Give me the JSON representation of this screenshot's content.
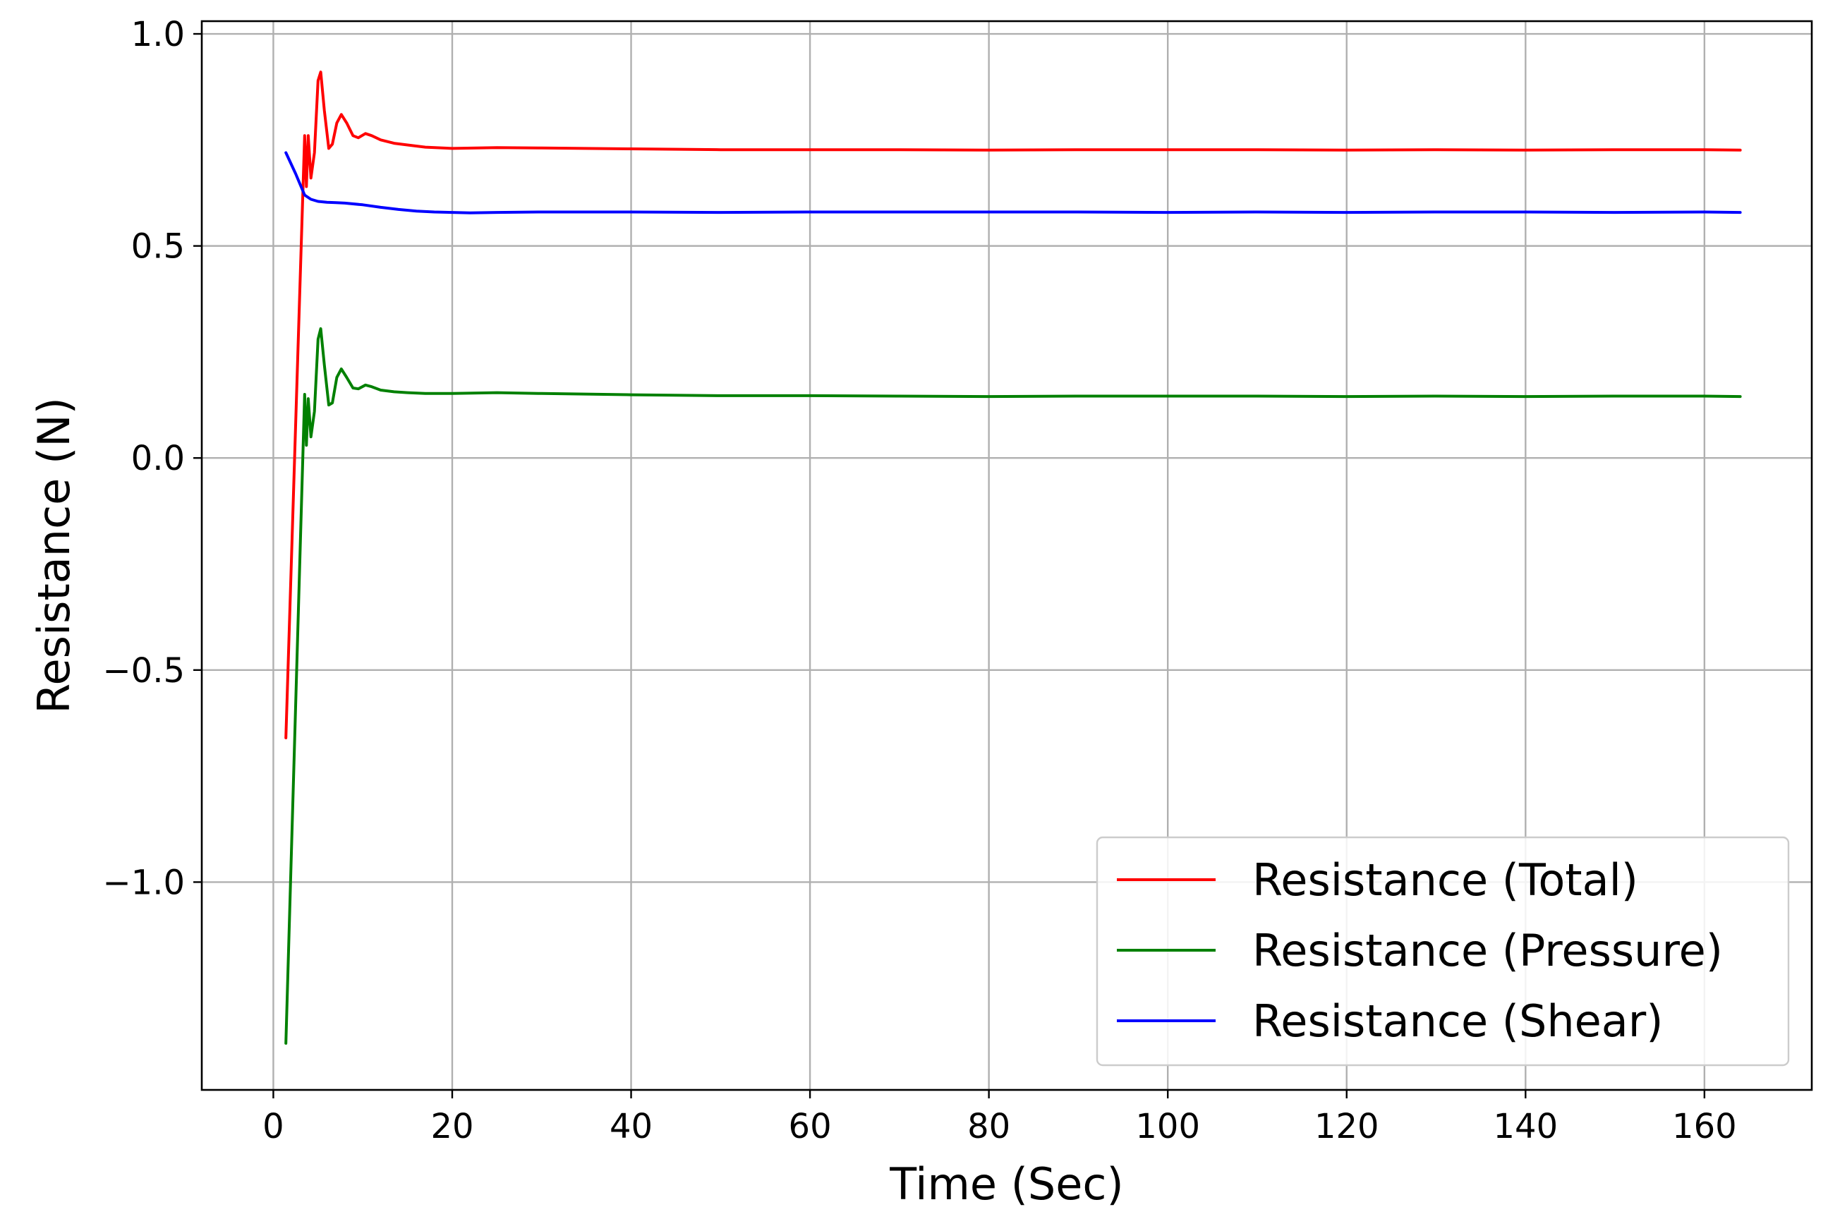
{
  "chart_data": {
    "type": "line",
    "xlabel": "Time (Sec)",
    "ylabel": "Resistance (N)",
    "xlim": [
      -8,
      172
    ],
    "ylim": [
      -1.49,
      1.03
    ],
    "xticks": [
      0,
      20,
      40,
      60,
      80,
      100,
      120,
      140,
      160
    ],
    "yticks": [
      1.0,
      0.5,
      0.0,
      -0.5,
      -1.0
    ],
    "ytick_labels": [
      "1.0",
      "0.5",
      "0.0",
      "−0.5",
      "−1.0"
    ],
    "grid": true,
    "legend_position": "lower-right",
    "series": [
      {
        "name": "Resistance (Total)",
        "color": "#ff0000",
        "x": [
          1.4,
          3.5,
          3.7,
          3.9,
          4.2,
          4.6,
          5.0,
          5.3,
          5.7,
          6.2,
          6.6,
          7.1,
          7.6,
          8.2,
          8.9,
          9.5,
          10.3,
          11.0,
          12.0,
          13.5,
          15.0,
          17.0,
          20.0,
          25.0,
          30.0,
          40.0,
          50.0,
          60.0,
          70.0,
          80.0,
          90.0,
          100.0,
          110.0,
          120.0,
          130.0,
          140.0,
          150.0,
          160.0,
          164.0
        ],
        "y": [
          -0.66,
          0.76,
          0.64,
          0.76,
          0.66,
          0.72,
          0.89,
          0.91,
          0.82,
          0.73,
          0.74,
          0.79,
          0.81,
          0.79,
          0.76,
          0.755,
          0.765,
          0.76,
          0.75,
          0.742,
          0.738,
          0.733,
          0.73,
          0.732,
          0.731,
          0.729,
          0.727,
          0.727,
          0.727,
          0.726,
          0.727,
          0.727,
          0.727,
          0.726,
          0.727,
          0.726,
          0.727,
          0.727,
          0.726
        ]
      },
      {
        "name": "Resistance (Pressure)",
        "color": "#008000",
        "x": [
          1.4,
          3.5,
          3.7,
          3.9,
          4.2,
          4.6,
          5.0,
          5.3,
          5.7,
          6.2,
          6.6,
          7.1,
          7.6,
          8.2,
          8.9,
          9.5,
          10.3,
          11.0,
          12.0,
          13.5,
          15.0,
          17.0,
          20.0,
          25.0,
          30.0,
          40.0,
          50.0,
          60.0,
          70.0,
          80.0,
          90.0,
          100.0,
          110.0,
          120.0,
          130.0,
          140.0,
          150.0,
          160.0,
          164.0
        ],
        "y": [
          -1.38,
          0.15,
          0.03,
          0.14,
          0.05,
          0.11,
          0.28,
          0.305,
          0.22,
          0.125,
          0.13,
          0.19,
          0.21,
          0.19,
          0.165,
          0.163,
          0.172,
          0.168,
          0.16,
          0.156,
          0.154,
          0.152,
          0.152,
          0.154,
          0.152,
          0.149,
          0.147,
          0.147,
          0.146,
          0.145,
          0.146,
          0.146,
          0.146,
          0.145,
          0.146,
          0.145,
          0.146,
          0.146,
          0.145
        ]
      },
      {
        "name": "Resistance (Shear)",
        "color": "#0000ff",
        "x": [
          1.4,
          2.5,
          3.5,
          4.2,
          5.0,
          6.0,
          7.0,
          8.0,
          10.0,
          12.0,
          14.0,
          16.0,
          18.0,
          20.0,
          22.0,
          25.0,
          30.0,
          40.0,
          50.0,
          60.0,
          70.0,
          80.0,
          90.0,
          100.0,
          110.0,
          120.0,
          130.0,
          140.0,
          150.0,
          160.0,
          164.0
        ],
        "y": [
          0.72,
          0.67,
          0.62,
          0.61,
          0.605,
          0.603,
          0.602,
          0.601,
          0.597,
          0.591,
          0.586,
          0.582,
          0.58,
          0.579,
          0.578,
          0.579,
          0.58,
          0.58,
          0.579,
          0.58,
          0.58,
          0.58,
          0.58,
          0.579,
          0.58,
          0.579,
          0.58,
          0.58,
          0.579,
          0.58,
          0.579
        ]
      }
    ]
  }
}
